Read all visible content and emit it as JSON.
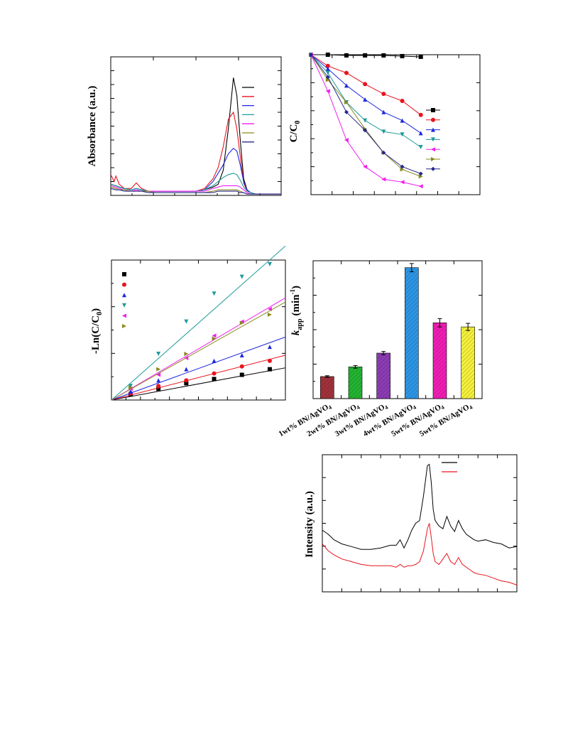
{
  "colors": {
    "black": "#000000",
    "red": "#e8141e",
    "blue": "#1e28e0",
    "teal": "#1e9a9a",
    "magenta": "#f01ef0",
    "olive": "#8a8a1e",
    "navy": "#28288c",
    "bar1": "#a0323c",
    "bar2": "#23b432",
    "bar3": "#8c3cb4",
    "bar4": "#2d96e6",
    "bar5": "#f01eb4",
    "bar6": "#f5f03c"
  },
  "chart_data": [
    {
      "id": "absorbance",
      "type": "line",
      "title": "",
      "xlabel": "",
      "ylabel": "Absorbance (a.u.)",
      "grid": false,
      "legend": "top-right",
      "legend_entries": 7,
      "xlim": [
        0,
        100
      ],
      "ylim": [
        0,
        100
      ],
      "series": [
        {
          "color": "black",
          "x": [
            0,
            3,
            5,
            8,
            12,
            15,
            18,
            22,
            25,
            30,
            40,
            50,
            55,
            60,
            63,
            66,
            69,
            72,
            74,
            76,
            78,
            80,
            82,
            85,
            90,
            100
          ],
          "y": [
            8,
            7,
            6,
            5,
            4,
            5,
            4,
            3,
            3,
            3,
            3,
            3,
            4,
            6,
            8,
            18,
            48,
            85,
            72,
            40,
            12,
            4,
            2,
            1,
            1,
            1
          ]
        },
        {
          "color": "red",
          "x": [
            0,
            2,
            3,
            5,
            8,
            12,
            15,
            18,
            22,
            25,
            30,
            40,
            50,
            55,
            60,
            63,
            66,
            69,
            72,
            74,
            76,
            78,
            80,
            82,
            85,
            90,
            100
          ],
          "y": [
            15,
            10,
            14,
            8,
            5,
            5,
            9,
            5,
            3,
            3,
            3,
            3,
            3,
            5,
            12,
            20,
            35,
            55,
            60,
            48,
            28,
            9,
            3,
            2,
            1,
            1,
            1
          ]
        },
        {
          "color": "blue",
          "x": [
            0,
            3,
            5,
            8,
            12,
            15,
            18,
            22,
            25,
            30,
            40,
            50,
            55,
            60,
            63,
            66,
            69,
            72,
            74,
            76,
            78,
            80,
            82,
            85,
            90,
            100
          ],
          "y": [
            8,
            7,
            6,
            5,
            4,
            5,
            4,
            3,
            3,
            3,
            3,
            3,
            4,
            10,
            16,
            22,
            30,
            34,
            32,
            22,
            10,
            4,
            2,
            1,
            1,
            1
          ]
        },
        {
          "color": "teal",
          "x": [
            0,
            3,
            5,
            8,
            12,
            15,
            18,
            22,
            25,
            30,
            40,
            50,
            55,
            60,
            63,
            66,
            69,
            72,
            74,
            76,
            78,
            80,
            82,
            85,
            90,
            100
          ],
          "y": [
            8,
            7,
            6,
            5,
            4,
            5,
            4,
            3,
            3,
            3,
            3,
            3,
            4,
            7,
            10,
            13,
            15,
            16,
            15,
            11,
            6,
            3,
            2,
            1,
            1,
            1
          ]
        },
        {
          "color": "magenta",
          "x": [
            0,
            3,
            5,
            8,
            12,
            15,
            18,
            22,
            25,
            30,
            40,
            50,
            55,
            60,
            63,
            66,
            69,
            72,
            74,
            76,
            78,
            80,
            82,
            85,
            90,
            100
          ],
          "y": [
            7,
            6,
            5,
            4,
            3,
            4,
            3,
            3,
            3,
            3,
            3,
            3,
            3,
            5,
            6,
            7,
            7,
            7,
            7,
            6,
            4,
            2,
            1,
            1,
            1,
            1
          ]
        },
        {
          "color": "olive",
          "x": [
            0,
            3,
            5,
            8,
            12,
            15,
            18,
            22,
            25,
            30,
            40,
            50,
            55,
            60,
            63,
            66,
            69,
            72,
            74,
            76,
            78,
            80,
            82,
            85,
            90,
            100
          ],
          "y": [
            6,
            5,
            4,
            4,
            3,
            3,
            3,
            3,
            2,
            2,
            2,
            2,
            2,
            3,
            4,
            4,
            4,
            4,
            4,
            3,
            2,
            1,
            1,
            1,
            1,
            1
          ]
        },
        {
          "color": "navy",
          "x": [
            0,
            3,
            5,
            8,
            12,
            15,
            18,
            22,
            25,
            30,
            40,
            50,
            55,
            60,
            63,
            66,
            69,
            72,
            74,
            76,
            78,
            80,
            82,
            85,
            90,
            100
          ],
          "y": [
            5,
            4,
            4,
            3,
            3,
            3,
            3,
            2,
            2,
            2,
            2,
            2,
            2,
            2,
            3,
            3,
            3,
            3,
            3,
            2,
            2,
            1,
            1,
            1,
            1,
            1
          ]
        }
      ]
    },
    {
      "id": "c-over-c0",
      "type": "line",
      "title": "",
      "xlabel": "",
      "ylabel": "C/C0",
      "grid": false,
      "legend": "right",
      "legend_entries": 7,
      "xlim": [
        0,
        100
      ],
      "ylim": [
        0,
        1.0
      ],
      "x": [
        0,
        10,
        21,
        32,
        43,
        54,
        65
      ],
      "series": [
        {
          "color": "black",
          "marker": "square",
          "y": [
            1.0,
            1.0,
            0.995,
            0.995,
            0.995,
            0.99,
            0.985
          ]
        },
        {
          "color": "red",
          "marker": "circle",
          "y": [
            1.0,
            0.92,
            0.87,
            0.79,
            0.72,
            0.67,
            0.57
          ]
        },
        {
          "color": "blue",
          "marker": "triangle-up",
          "y": [
            1.0,
            0.9,
            0.78,
            0.68,
            0.59,
            0.53,
            0.44
          ]
        },
        {
          "color": "teal",
          "marker": "triangle-down",
          "y": [
            1.0,
            0.87,
            0.66,
            0.53,
            0.45,
            0.43,
            0.34
          ]
        },
        {
          "color": "magenta",
          "marker": "triangle-left",
          "y": [
            1.0,
            0.74,
            0.39,
            0.2,
            0.11,
            0.09,
            0.06
          ]
        },
        {
          "color": "olive",
          "marker": "triangle-right",
          "y": [
            1.0,
            0.82,
            0.66,
            0.47,
            0.3,
            0.18,
            0.13
          ]
        },
        {
          "color": "navy",
          "marker": "diamond",
          "y": [
            1.0,
            0.84,
            0.59,
            0.46,
            0.3,
            0.2,
            0.15
          ]
        }
      ]
    },
    {
      "id": "kinetics",
      "type": "scatter",
      "title": "",
      "xlabel": "",
      "ylabel": "-Ln(C/C0)",
      "grid": false,
      "legend": "top-left",
      "legend_entries": 6,
      "xlim": [
        0,
        100
      ],
      "ylim": [
        0,
        100
      ],
      "x": [
        0,
        11,
        27,
        43,
        59,
        75,
        91
      ],
      "series": [
        {
          "color": "black",
          "marker": "square",
          "y": [
            0,
            4,
            8,
            12,
            15,
            18,
            22
          ],
          "fit": [
            0,
            23
          ]
        },
        {
          "color": "red",
          "marker": "circle",
          "y": [
            0,
            5,
            10,
            14,
            19,
            24,
            28
          ],
          "fit": [
            0,
            32
          ]
        },
        {
          "color": "blue",
          "marker": "triangle-up",
          "y": [
            0,
            6,
            14,
            22,
            28,
            32,
            38
          ],
          "fit": [
            0,
            45
          ]
        },
        {
          "color": "teal",
          "marker": "triangle-down",
          "y": [
            0,
            10,
            33,
            56,
            76,
            88,
            97
          ],
          "fit": [
            0,
            110
          ]
        },
        {
          "color": "magenta",
          "marker": "triangle-left",
          "y": [
            0,
            8,
            18,
            30,
            46,
            56,
            65
          ],
          "fit": [
            0,
            73
          ]
        },
        {
          "color": "olive",
          "marker": "triangle-right",
          "y": [
            0,
            9,
            22,
            33,
            44,
            55,
            61
          ],
          "fit": [
            0,
            70
          ]
        }
      ]
    },
    {
      "id": "kapp",
      "type": "bar",
      "title": "",
      "xlabel": "",
      "ylabel_main": "k",
      "ylabel_sub": "app",
      "ylabel_unit": "(min",
      "ylabel_sup": "-1",
      "ylabel_close": ")",
      "grid": false,
      "ylim": [
        0,
        100
      ],
      "categories": [
        "1wt% BN/AgVO",
        "2wt% BN/AgVO",
        "3wt% BN/AgVO",
        "4wt% BN/AgVO",
        "5wt% BN/AgVO",
        "5wt% BN/AgVO"
      ],
      "category_subscript": "4",
      "values": [
        16,
        23,
        33,
        95,
        55,
        52
      ],
      "errors": [
        0.6,
        1.0,
        1.2,
        3.0,
        3.0,
        2.6
      ],
      "colors": [
        "bar1",
        "bar2",
        "bar3",
        "bar4",
        "bar5",
        "bar6"
      ]
    },
    {
      "id": "xrd",
      "type": "line",
      "title": "",
      "xlabel": "",
      "ylabel": "Intensity (a.u.)",
      "grid": false,
      "legend": "top-right",
      "legend_entries": 2,
      "xlim": [
        0,
        100
      ],
      "ylim": [
        0,
        100
      ],
      "series": [
        {
          "color": "black",
          "x": [
            0,
            3,
            6,
            10,
            15,
            20,
            25,
            30,
            35,
            38,
            40,
            42,
            44,
            46,
            48,
            50,
            52,
            54,
            55,
            56,
            57,
            58,
            60,
            62,
            64,
            66,
            68,
            70,
            72,
            74,
            76,
            78,
            80,
            84,
            88,
            92,
            96,
            100
          ],
          "y": [
            45,
            42,
            38,
            35,
            33,
            31,
            31,
            32,
            34,
            34,
            38,
            32,
            38,
            45,
            50,
            52,
            70,
            92,
            93,
            80,
            60,
            52,
            48,
            46,
            55,
            48,
            44,
            52,
            46,
            42,
            40,
            38,
            37,
            38,
            36,
            35,
            32,
            33
          ]
        },
        {
          "color": "red",
          "x": [
            0,
            3,
            6,
            10,
            15,
            20,
            25,
            30,
            35,
            38,
            40,
            42,
            44,
            46,
            48,
            50,
            52,
            54,
            55,
            56,
            57,
            58,
            60,
            62,
            64,
            66,
            68,
            70,
            72,
            74,
            76,
            78,
            80,
            84,
            88,
            92,
            96,
            100
          ],
          "y": [
            35,
            30,
            27,
            24,
            22,
            20,
            19,
            19,
            19,
            18,
            20,
            18,
            19,
            19,
            20,
            22,
            30,
            46,
            50,
            40,
            28,
            22,
            20,
            24,
            28,
            22,
            20,
            25,
            20,
            18,
            16,
            14,
            13,
            12,
            10,
            8,
            7,
            5
          ]
        }
      ]
    }
  ]
}
